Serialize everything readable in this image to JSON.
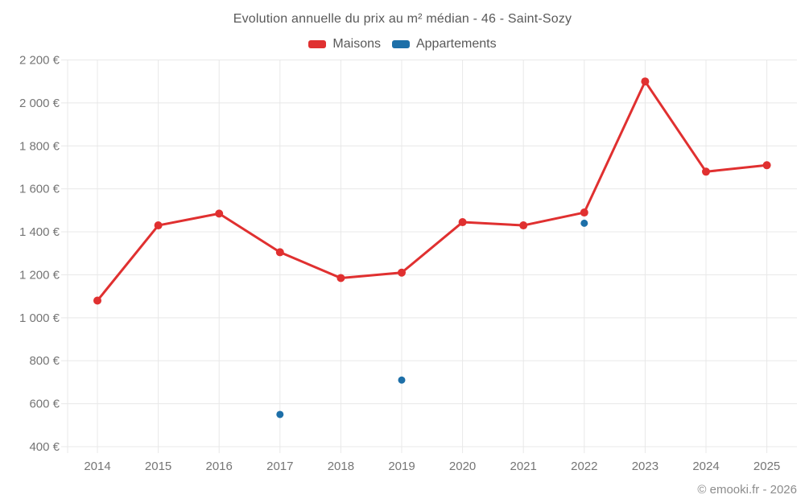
{
  "title": "Evolution annuelle du prix au m² médian - 46 - Saint-Sozy",
  "legend": [
    {
      "label": "Maisons",
      "color": "#e03030"
    },
    {
      "label": "Appartements",
      "color": "#1d6fa8"
    }
  ],
  "copyright": "© emooki.fr - 2026",
  "colors": {
    "grid": "#e8e8e8",
    "axis_text": "#757575",
    "title_text": "#595959",
    "copyright_text": "#8c8c8c",
    "background": "#ffffff"
  },
  "chart_data": {
    "type": "line",
    "title": "Evolution annuelle du prix au m² médian - 46 - Saint-Sozy",
    "xlabel": "",
    "ylabel": "",
    "categories": [
      "2014",
      "2015",
      "2016",
      "2017",
      "2018",
      "2019",
      "2020",
      "2021",
      "2022",
      "2023",
      "2024",
      "2025"
    ],
    "series": [
      {
        "name": "Maisons",
        "color": "#e03030",
        "values": [
          1080,
          1430,
          1485,
          1305,
          1185,
          1210,
          1445,
          1430,
          1490,
          2100,
          1680,
          1710
        ]
      },
      {
        "name": "Appartements",
        "color": "#1d6fa8",
        "values": [
          null,
          null,
          null,
          550,
          null,
          710,
          null,
          null,
          1440,
          null,
          null,
          null
        ]
      }
    ],
    "ylim": [
      400,
      2200
    ],
    "ytick_step": 200,
    "y_tick_labels": [
      "400 €",
      "600 €",
      "800 €",
      "1 000 €",
      "1 200 €",
      "1 400 €",
      "1 600 €",
      "1 800 €",
      "2 000 €",
      "2 200 €"
    ],
    "grid": true,
    "legend_position": "top"
  }
}
